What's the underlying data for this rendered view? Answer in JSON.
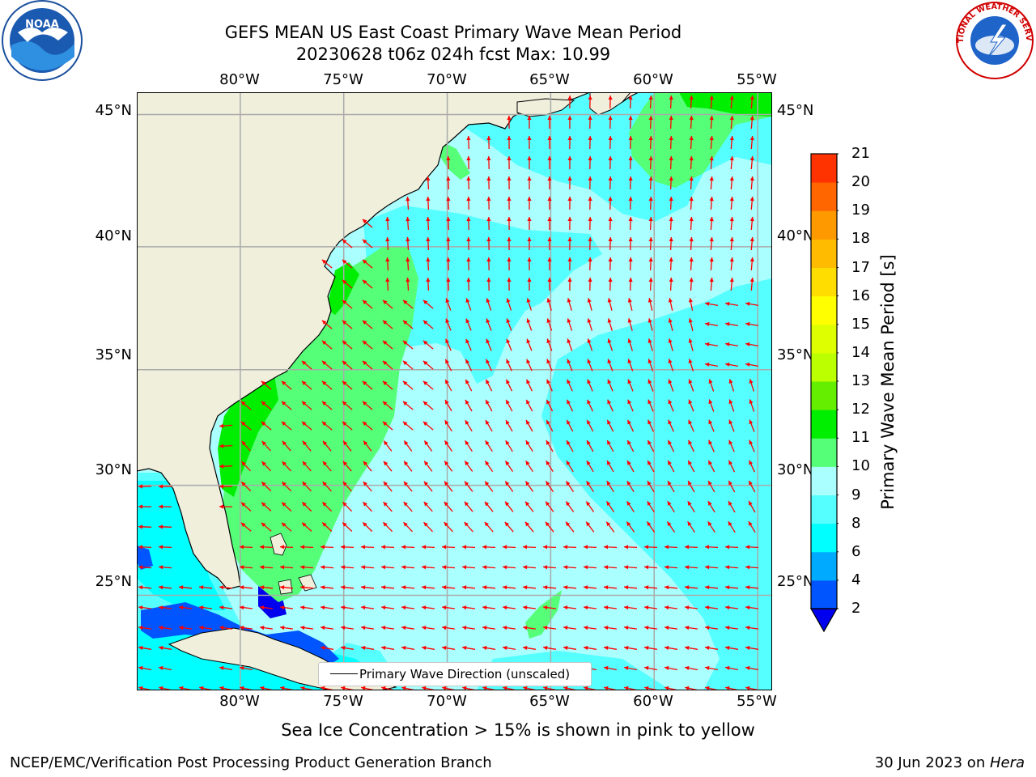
{
  "title": {
    "line1": "GEFS MEAN US East Coast Primary Wave Mean Period",
    "line2": "20230628 t06z 024h fcst   Max: 10.99"
  },
  "logos": {
    "left": "NOAA",
    "right": "NATIONAL WEATHER SERVICE"
  },
  "map": {
    "lon_labels": [
      "80°W",
      "75°W",
      "70°W",
      "65°W",
      "60°W",
      "55°W"
    ],
    "lat_labels": [
      "45°N",
      "40°N",
      "35°N",
      "30°N",
      "25°N"
    ],
    "lon_range": [
      -85,
      -54.3
    ],
    "lat_range": [
      20.5,
      45.8
    ],
    "grid_lons": [
      -80,
      -75,
      -70,
      -65,
      -60,
      -55
    ],
    "grid_lats": [
      45,
      40,
      35,
      30,
      25
    ],
    "land_color": "#efefdc",
    "legend_label": "Primary Wave Direction (unscaled)",
    "arrow_color": "#ff0000",
    "grid_color": "#aaaaaa"
  },
  "colorbar": {
    "label": "Primary Wave Mean Period [s]",
    "tick_labels": [
      "2",
      "4",
      "6",
      "8",
      "9",
      "10",
      "11",
      "12",
      "13",
      "14",
      "15",
      "16",
      "17",
      "18",
      "19",
      "20",
      "21"
    ],
    "colors": [
      "#0055ff",
      "#00aaff",
      "#00ffff",
      "#55ffff",
      "#aaffff",
      "#55ff77",
      "#00ee00",
      "#66ee00",
      "#bbff00",
      "#ddff00",
      "#ffff00",
      "#ffdd00",
      "#ffbb00",
      "#ff9900",
      "#ff6600",
      "#ff3300",
      "#ff0000"
    ],
    "under_color": "#0000ee"
  },
  "subtitle": "Sea Ice Concentration > 15% is shown in pink to yellow",
  "footer": {
    "left": "NCEP/EMC/Verification Post Processing Product Generation Branch",
    "date": "30 Jun 2023 on ",
    "machine": "Hera"
  }
}
